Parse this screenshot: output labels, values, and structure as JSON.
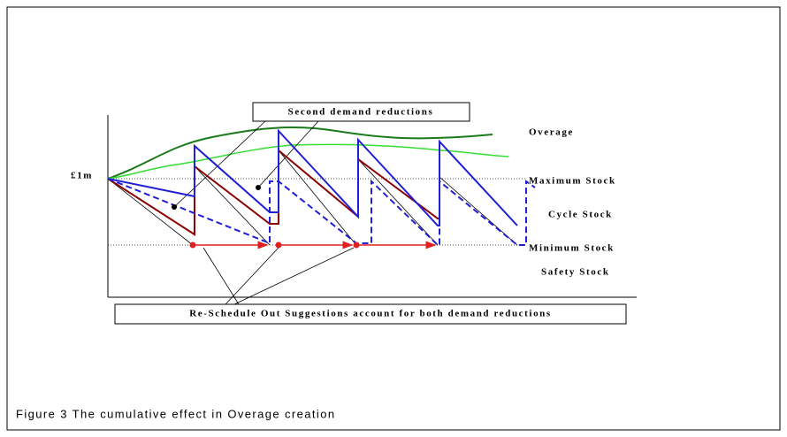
{
  "title_box": "Second demand reductions",
  "labels": {
    "overage": "Overage",
    "one_million": "£1m",
    "maximum_stock": "Maximum Stock",
    "cycle_stock": "Cycle Stock",
    "minimum_stock": "Minimum Stock",
    "safety_stock": "Safety Stock"
  },
  "note_box": "Re-Schedule Out Suggestions account for both demand reductions",
  "caption": "Figure 3 The cumulative effect in Overage creation"
}
